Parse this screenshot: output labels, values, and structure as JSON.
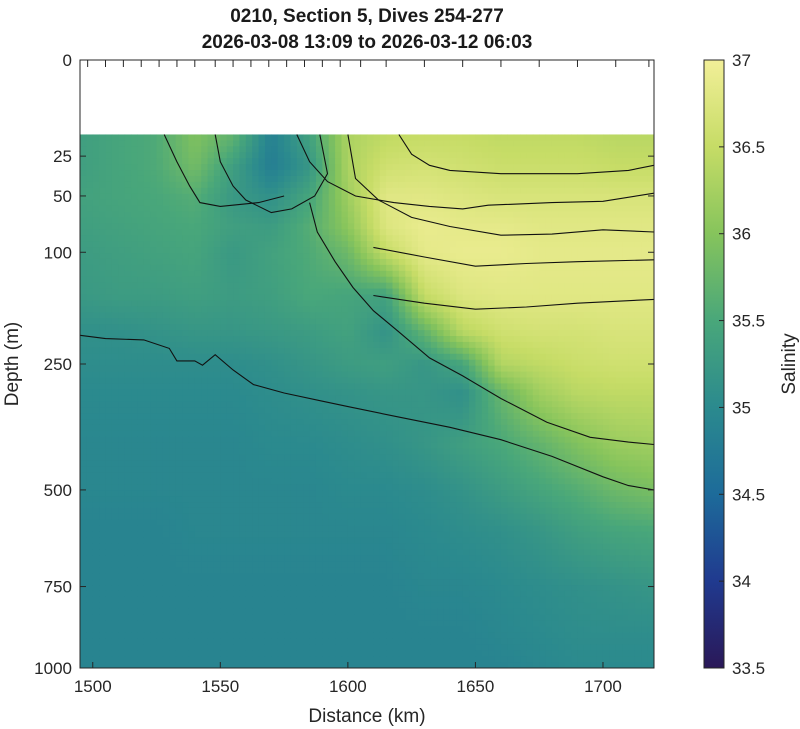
{
  "chart_data": {
    "type": "heatmap",
    "title": [
      "0210, Section 5, Dives 254-277",
      "2026-03-08 13:09 to 2026-03-12 06:03"
    ],
    "xlabel": "Distance (km)",
    "ylabel": "Depth (m)",
    "colorbar_label": "Salinity",
    "xlim": [
      1495,
      1720
    ],
    "ylim": [
      0,
      1000
    ],
    "y_scale": "sqrt",
    "x_ticks": [
      1500,
      1550,
      1600,
      1650,
      1700
    ],
    "y_ticks": [
      0,
      25,
      50,
      100,
      250,
      500,
      750,
      1000
    ],
    "colorbar_range": [
      33.5,
      37
    ],
    "colorbar_ticks": [
      "33.5",
      "34",
      "34.5",
      "35",
      "35.5",
      "36",
      "36.5",
      "37"
    ],
    "colormap": [
      "#2a1858",
      "#203a8f",
      "#1d6b9a",
      "#2b8a8e",
      "#49a77a",
      "#86c45c",
      "#c6dc66",
      "#f2ef98"
    ],
    "data_top_depth": 15,
    "dive_marks_km": [
      1498,
      1505,
      1512,
      1519,
      1526,
      1533,
      1540,
      1548,
      1555,
      1562,
      1569,
      1576,
      1583,
      1590,
      1597,
      1605,
      1615,
      1630,
      1645,
      1660,
      1675,
      1690,
      1705,
      1718
    ],
    "grid": false,
    "contours": [
      {
        "name": "35",
        "points": [
          [
            1495,
            205
          ],
          [
            1505,
            210
          ],
          [
            1520,
            212
          ],
          [
            1530,
            225
          ],
          [
            1533,
            245
          ],
          [
            1540,
            245
          ],
          [
            1543,
            252
          ],
          [
            1548,
            235
          ],
          [
            1555,
            260
          ],
          [
            1563,
            285
          ],
          [
            1575,
            300
          ],
          [
            1590,
            315
          ],
          [
            1600,
            325
          ],
          [
            1620,
            345
          ],
          [
            1640,
            365
          ],
          [
            1660,
            390
          ],
          [
            1680,
            425
          ],
          [
            1700,
            470
          ],
          [
            1710,
            490
          ],
          [
            1720,
            500
          ]
        ]
      },
      {
        "name": "35.5",
        "points": [
          [
            1585,
            55
          ],
          [
            1588,
            80
          ],
          [
            1595,
            110
          ],
          [
            1602,
            140
          ],
          [
            1610,
            170
          ],
          [
            1620,
            200
          ],
          [
            1632,
            240
          ],
          [
            1645,
            270
          ],
          [
            1660,
            310
          ],
          [
            1678,
            355
          ],
          [
            1695,
            385
          ],
          [
            1710,
            395
          ],
          [
            1720,
            400
          ]
        ]
      },
      {
        "name": "36",
        "points": [
          [
            1548,
            15
          ],
          [
            1550,
            28
          ],
          [
            1555,
            43
          ],
          [
            1560,
            53
          ],
          [
            1570,
            63
          ],
          [
            1578,
            60
          ],
          [
            1587,
            50
          ],
          [
            1592,
            35
          ],
          [
            1589,
            15
          ]
        ]
      },
      {
        "name": "36-left",
        "points": [
          [
            1528,
            15
          ],
          [
            1533,
            28
          ],
          [
            1538,
            43
          ],
          [
            1542,
            55
          ],
          [
            1550,
            58
          ],
          [
            1565,
            55
          ],
          [
            1575,
            50
          ]
        ]
      },
      {
        "name": "36.5",
        "points": [
          [
            1600,
            15
          ],
          [
            1603,
            38
          ],
          [
            1612,
            53
          ],
          [
            1625,
            67
          ],
          [
            1640,
            75
          ],
          [
            1660,
            83
          ],
          [
            1680,
            82
          ],
          [
            1700,
            78
          ],
          [
            1720,
            80
          ]
        ]
      },
      {
        "name": "36.5-b",
        "points": [
          [
            1580,
            15
          ],
          [
            1585,
            28
          ],
          [
            1592,
            40
          ],
          [
            1603,
            50
          ],
          [
            1618,
            55
          ],
          [
            1632,
            58
          ],
          [
            1645,
            60
          ],
          [
            1655,
            57
          ],
          [
            1680,
            55
          ],
          [
            1700,
            54
          ],
          [
            1720,
            48
          ]
        ]
      },
      {
        "name": "37",
        "points": [
          [
            1620,
            15
          ],
          [
            1625,
            24
          ],
          [
            1632,
            30
          ],
          [
            1640,
            33
          ],
          [
            1660,
            35
          ],
          [
            1690,
            35
          ],
          [
            1710,
            33
          ],
          [
            1720,
            30
          ]
        ]
      },
      {
        "name": "36-mid",
        "points": [
          [
            1610,
            95
          ],
          [
            1630,
            105
          ],
          [
            1650,
            115
          ],
          [
            1670,
            112
          ],
          [
            1690,
            110
          ],
          [
            1720,
            108
          ]
        ]
      },
      {
        "name": "36-mid2",
        "points": [
          [
            1610,
            150
          ],
          [
            1630,
            160
          ],
          [
            1650,
            168
          ],
          [
            1670,
            165
          ],
          [
            1690,
            160
          ],
          [
            1720,
            155
          ]
        ]
      }
    ],
    "salinity_field": {
      "x": [
        1495,
        1510,
        1525,
        1540,
        1555,
        1570,
        1585,
        1600,
        1615,
        1630,
        1645,
        1660,
        1675,
        1690,
        1705,
        1720
      ],
      "depth": [
        15,
        30,
        50,
        75,
        100,
        150,
        200,
        250,
        300,
        400,
        500,
        600,
        750,
        900,
        1000
      ],
      "values": [
        [
          35.35,
          35.45,
          35.55,
          35.95,
          35.7,
          34.85,
          35.4,
          36.3,
          36.45,
          36.5,
          36.5,
          36.45,
          36.45,
          36.45,
          36.4,
          36.4
        ],
        [
          35.35,
          35.45,
          35.55,
          35.85,
          35.35,
          34.8,
          35.2,
          36.3,
          36.6,
          36.65,
          36.6,
          36.55,
          36.55,
          36.55,
          36.5,
          36.5
        ],
        [
          35.4,
          35.45,
          35.5,
          35.6,
          35.25,
          35.1,
          35.45,
          36.2,
          36.8,
          36.8,
          36.75,
          36.7,
          36.7,
          36.7,
          36.7,
          36.7
        ],
        [
          35.35,
          35.4,
          35.45,
          35.5,
          35.35,
          35.3,
          35.6,
          36.05,
          36.75,
          36.9,
          36.85,
          36.85,
          36.8,
          36.8,
          36.8,
          36.8
        ],
        [
          35.3,
          35.35,
          35.4,
          35.45,
          35.25,
          35.4,
          35.55,
          35.8,
          36.5,
          36.85,
          36.9,
          36.9,
          36.85,
          36.85,
          36.85,
          36.85
        ],
        [
          35.25,
          35.3,
          35.3,
          35.35,
          35.3,
          35.35,
          35.5,
          35.45,
          35.4,
          36.5,
          36.75,
          36.8,
          36.8,
          36.8,
          36.8,
          36.8
        ],
        [
          35.1,
          35.1,
          35.15,
          35.2,
          35.2,
          35.25,
          35.3,
          35.4,
          35.15,
          35.7,
          36.4,
          36.6,
          36.65,
          36.65,
          36.7,
          36.7
        ],
        [
          35.05,
          35.05,
          35.05,
          35.05,
          35.05,
          35.1,
          35.2,
          35.3,
          35.35,
          35.2,
          35.45,
          36.35,
          36.45,
          36.55,
          36.6,
          36.6
        ],
        [
          35.0,
          35.0,
          35.0,
          35.0,
          35.0,
          35.05,
          35.1,
          35.15,
          35.2,
          35.2,
          35.1,
          35.75,
          36.2,
          36.4,
          36.45,
          36.45
        ],
        [
          34.95,
          34.95,
          34.95,
          34.95,
          34.95,
          35.0,
          35.0,
          35.05,
          35.1,
          35.2,
          35.35,
          35.5,
          35.7,
          35.95,
          36.15,
          36.2
        ],
        [
          34.95,
          34.95,
          34.95,
          34.95,
          34.95,
          34.95,
          34.95,
          35.0,
          35.0,
          35.05,
          35.15,
          35.3,
          35.45,
          35.6,
          35.8,
          35.9
        ],
        [
          34.9,
          34.9,
          34.9,
          34.95,
          34.95,
          34.95,
          34.95,
          34.95,
          34.95,
          35.0,
          35.05,
          35.1,
          35.2,
          35.35,
          35.45,
          35.5
        ],
        [
          34.9,
          34.9,
          34.9,
          34.9,
          34.9,
          34.9,
          34.9,
          34.9,
          34.9,
          34.95,
          34.95,
          35.0,
          35.05,
          35.1,
          35.15,
          35.2
        ],
        [
          34.9,
          34.9,
          34.9,
          34.9,
          34.9,
          34.9,
          34.9,
          34.9,
          34.9,
          34.9,
          34.9,
          34.95,
          35.0,
          35.05,
          35.05,
          35.05
        ],
        [
          34.9,
          34.9,
          34.9,
          34.9,
          34.9,
          34.9,
          34.9,
          34.9,
          34.9,
          34.9,
          34.9,
          34.9,
          34.95,
          35.0,
          35.0,
          35.0
        ]
      ]
    }
  }
}
